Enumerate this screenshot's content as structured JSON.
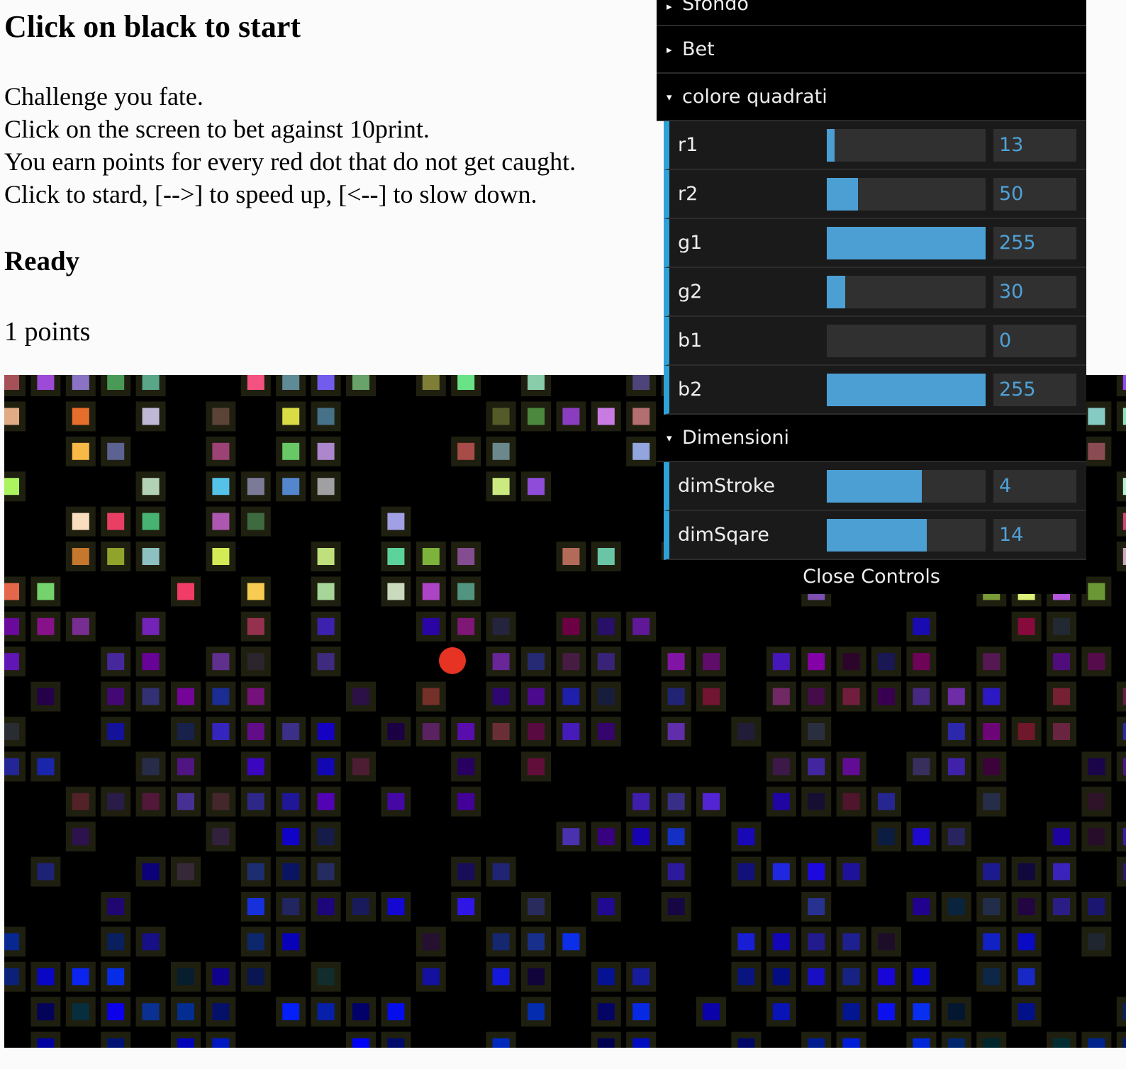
{
  "header": {
    "title": "Click on black to start",
    "instructions": [
      "Challenge you fate.",
      "Click on the screen to bet against 10print.",
      "You earn points for every red dot that do not get caught.",
      "Click to stard, [-->] to speed up, [<--] to slow down."
    ],
    "status": "Ready",
    "points_value": "1",
    "points_suffix": " points"
  },
  "gui": {
    "folders": {
      "sfondo": "Sfondo",
      "bet": "Bet",
      "colore": "colore quadrati",
      "dimensioni": "Dimensioni"
    },
    "colore_controls": [
      {
        "name": "r1",
        "value": "13",
        "fraction": 0.051
      },
      {
        "name": "r2",
        "value": "50",
        "fraction": 0.196
      },
      {
        "name": "g1",
        "value": "255",
        "fraction": 1.0
      },
      {
        "name": "g2",
        "value": "30",
        "fraction": 0.118
      },
      {
        "name": "b1",
        "value": "0",
        "fraction": 0.0
      },
      {
        "name": "b2",
        "value": "255",
        "fraction": 1.0
      }
    ],
    "dim_controls": [
      {
        "name": "dimStroke",
        "value": "4",
        "fraction": 0.6
      },
      {
        "name": "dimSqare",
        "value": "14",
        "fraction": 0.63
      }
    ],
    "close_label": "Close Controls",
    "accent_color": "#2fa1d6",
    "fill_color": "#4c9fd3",
    "value_color": "#4fa2d8"
  },
  "game": {
    "background": "#000000",
    "dot_color": "#e63323",
    "square_stroke_color": "#1f1f10"
  }
}
